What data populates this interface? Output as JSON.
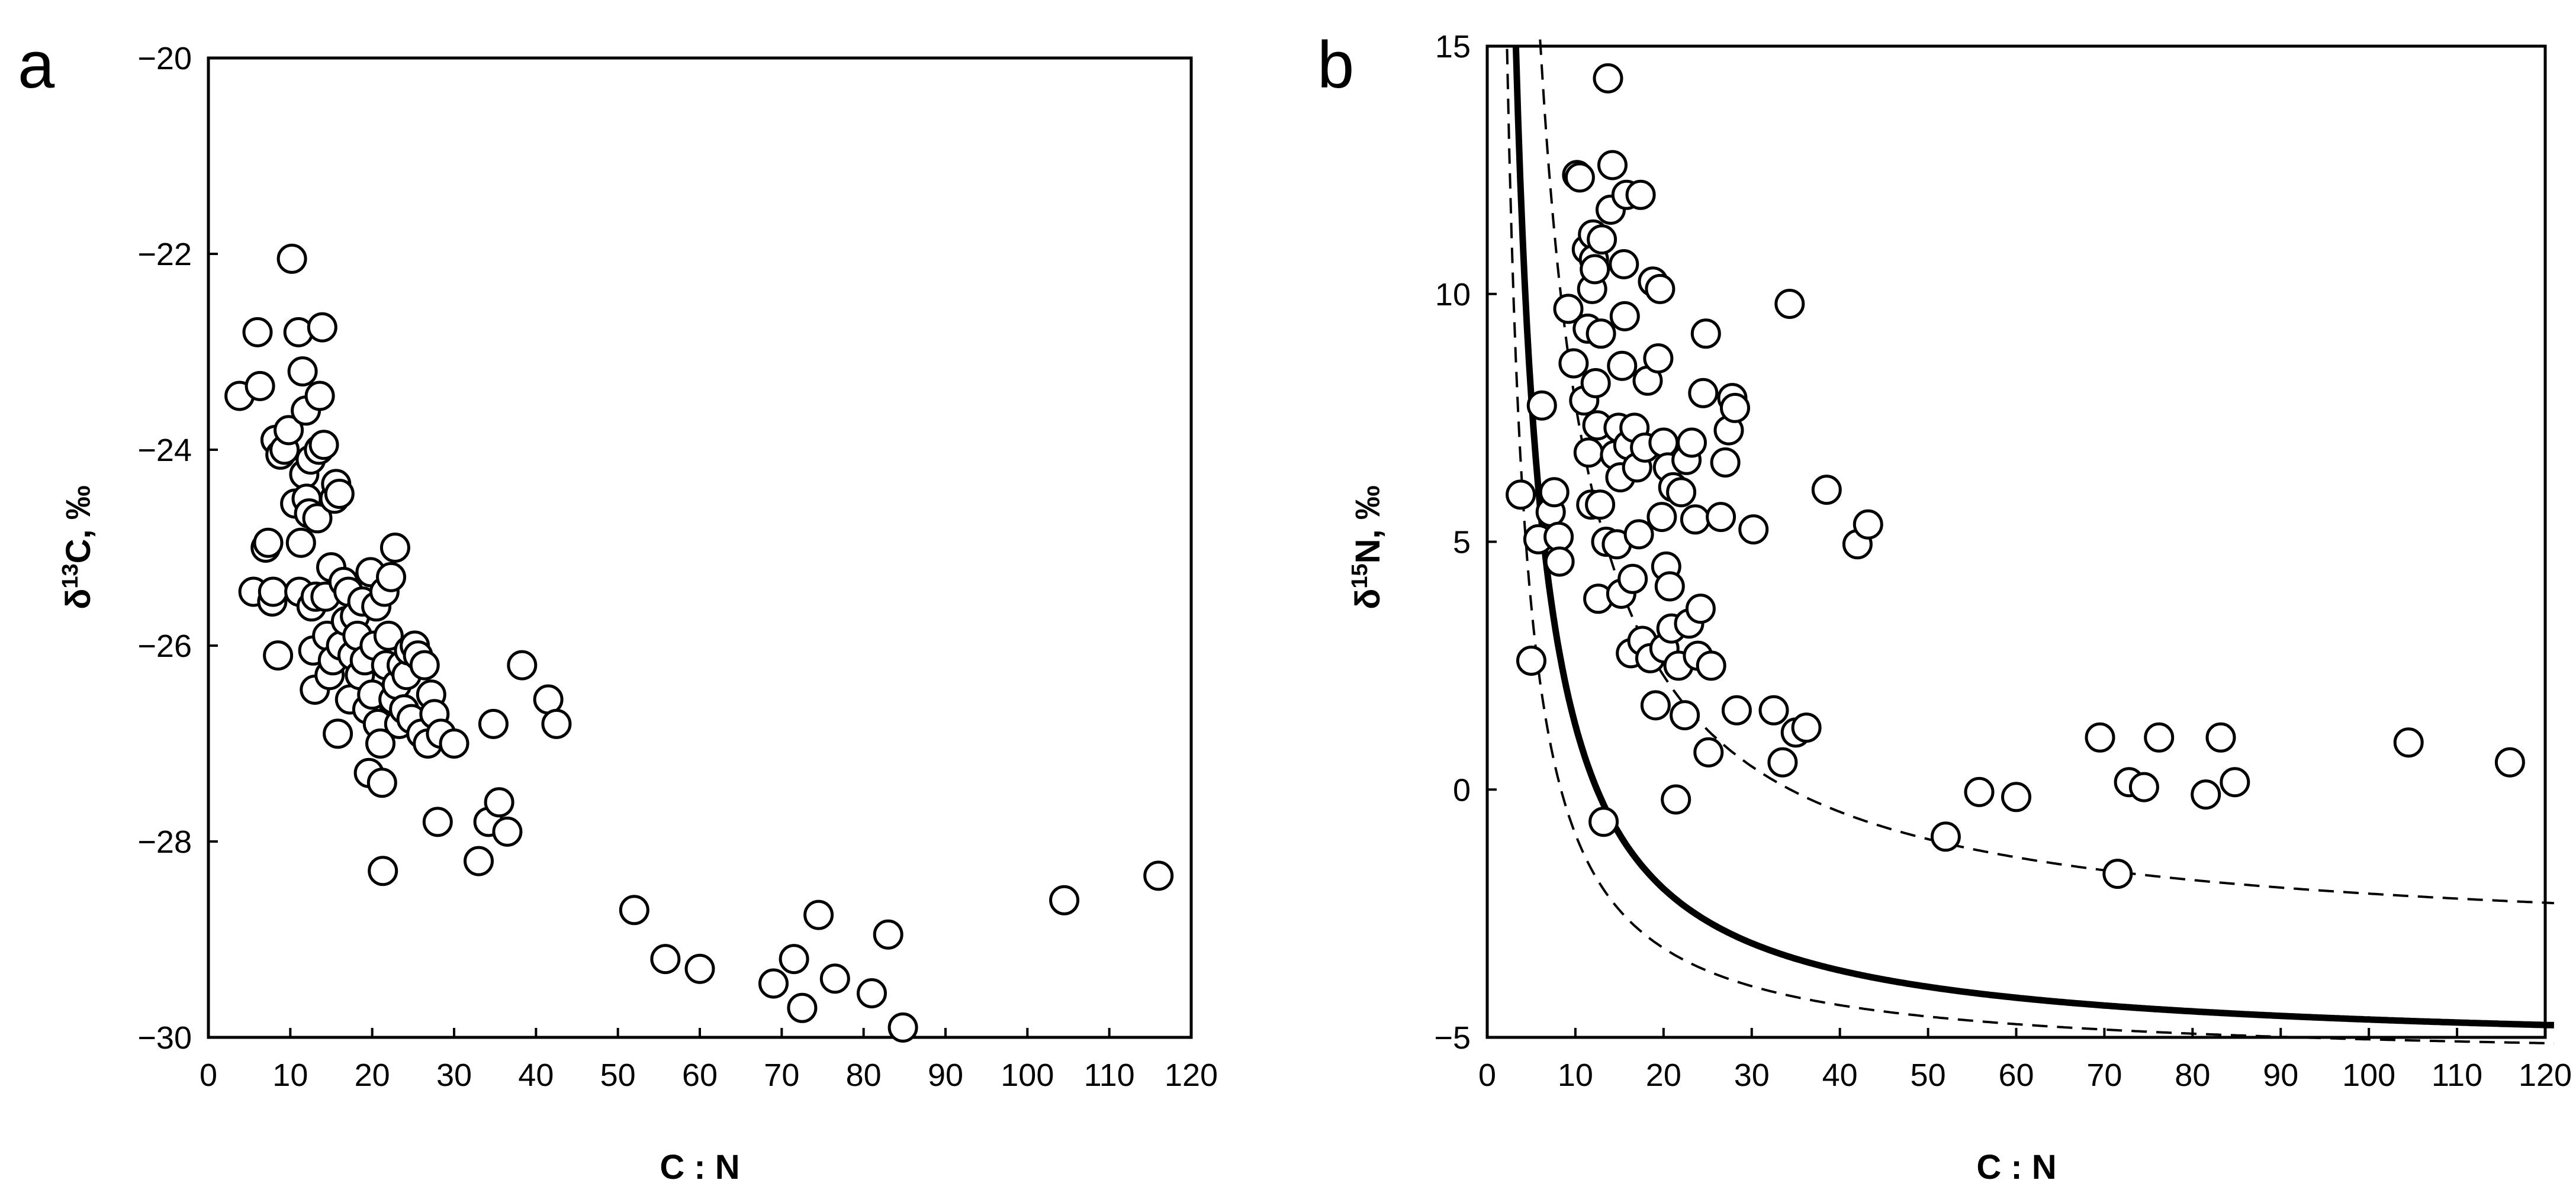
{
  "chart_data": [
    {
      "panel_label": "a",
      "type": "scatter",
      "xlabel": "C : N",
      "ylabel": "δ13C, ‰",
      "xlim": [
        0,
        120
      ],
      "ylim": [
        -30,
        -20
      ],
      "xticks": [
        0,
        10,
        20,
        30,
        40,
        50,
        60,
        70,
        80,
        90,
        100,
        110,
        120
      ],
      "yticks": [
        -30,
        -28,
        -26,
        -24,
        -22,
        -20
      ],
      "grid": false,
      "legend": "none",
      "points": [
        [
          3.8,
          -23.45
        ],
        [
          5.5,
          -25.45
        ],
        [
          6.0,
          -22.8
        ],
        [
          6.3,
          -23.35
        ],
        [
          7.0,
          -25.0
        ],
        [
          7.3,
          -24.95
        ],
        [
          7.8,
          -25.55
        ],
        [
          7.9,
          -25.45
        ],
        [
          8.2,
          -23.9
        ],
        [
          8.5,
          -26.1
        ],
        [
          8.8,
          -24.05
        ],
        [
          9.3,
          -24.0
        ],
        [
          9.8,
          -23.8
        ],
        [
          10.2,
          -22.05
        ],
        [
          10.6,
          -24.55
        ],
        [
          11.0,
          -22.8
        ],
        [
          11.1,
          -25.45
        ],
        [
          11.3,
          -24.95
        ],
        [
          11.5,
          -23.2
        ],
        [
          11.7,
          -24.25
        ],
        [
          11.9,
          -23.6
        ],
        [
          12.0,
          -24.5
        ],
        [
          12.3,
          -24.65
        ],
        [
          12.5,
          -24.1
        ],
        [
          12.6,
          -25.6
        ],
        [
          12.8,
          -26.05
        ],
        [
          13.0,
          -26.45
        ],
        [
          13.1,
          -25.5
        ],
        [
          13.3,
          -24.7
        ],
        [
          13.5,
          -24.0
        ],
        [
          13.6,
          -23.45
        ],
        [
          13.9,
          -22.75
        ],
        [
          14.1,
          -23.95
        ],
        [
          14.3,
          -25.5
        ],
        [
          14.5,
          -25.9
        ],
        [
          14.8,
          -26.3
        ],
        [
          15.0,
          -25.2
        ],
        [
          15.2,
          -26.15
        ],
        [
          15.4,
          -24.5
        ],
        [
          15.6,
          -24.35
        ],
        [
          15.8,
          -26.9
        ],
        [
          16.0,
          -24.45
        ],
        [
          16.2,
          -26.0
        ],
        [
          16.5,
          -25.35
        ],
        [
          16.8,
          -25.75
        ],
        [
          17.1,
          -25.45
        ],
        [
          17.3,
          -26.55
        ],
        [
          17.6,
          -26.1
        ],
        [
          17.9,
          -25.7
        ],
        [
          18.2,
          -25.9
        ],
        [
          18.5,
          -26.3
        ],
        [
          18.8,
          -25.55
        ],
        [
          19.1,
          -26.15
        ],
        [
          19.4,
          -26.65
        ],
        [
          19.6,
          -27.3
        ],
        [
          19.8,
          -25.25
        ],
        [
          20.0,
          -26.5
        ],
        [
          20.3,
          -26.0
        ],
        [
          20.5,
          -25.6
        ],
        [
          20.7,
          -26.8
        ],
        [
          21.0,
          -27.0
        ],
        [
          21.2,
          -27.4
        ],
        [
          21.3,
          -28.3
        ],
        [
          21.5,
          -25.45
        ],
        [
          21.7,
          -26.2
        ],
        [
          22.0,
          -25.9
        ],
        [
          22.3,
          -25.3
        ],
        [
          22.6,
          -26.55
        ],
        [
          22.8,
          -25.0
        ],
        [
          23.0,
          -26.4
        ],
        [
          23.3,
          -26.8
        ],
        [
          23.6,
          -26.2
        ],
        [
          23.9,
          -26.65
        ],
        [
          24.2,
          -26.3
        ],
        [
          24.5,
          -26.05
        ],
        [
          24.8,
          -26.75
        ],
        [
          25.2,
          -26.0
        ],
        [
          25.6,
          -26.1
        ],
        [
          26.0,
          -26.9
        ],
        [
          26.4,
          -26.2
        ],
        [
          26.8,
          -27.0
        ],
        [
          27.2,
          -26.5
        ],
        [
          27.6,
          -26.7
        ],
        [
          28.0,
          -27.8
        ],
        [
          28.4,
          -26.9
        ],
        [
          30.0,
          -27.0
        ],
        [
          33.0,
          -28.2
        ],
        [
          34.2,
          -27.8
        ],
        [
          34.8,
          -26.8
        ],
        [
          35.5,
          -27.6
        ],
        [
          36.5,
          -27.9
        ],
        [
          38.3,
          -26.2
        ],
        [
          41.5,
          -26.55
        ],
        [
          42.5,
          -26.8
        ],
        [
          52.0,
          -28.7
        ],
        [
          55.8,
          -29.2
        ],
        [
          60.0,
          -29.3
        ],
        [
          69.0,
          -29.45
        ],
        [
          71.5,
          -29.2
        ],
        [
          72.5,
          -29.7
        ],
        [
          74.5,
          -28.75
        ],
        [
          76.5,
          -29.4
        ],
        [
          81.0,
          -29.55
        ],
        [
          83.0,
          -28.95
        ],
        [
          84.8,
          -29.9
        ],
        [
          104.5,
          -28.6
        ],
        [
          116.0,
          -28.35
        ]
      ]
    },
    {
      "panel_label": "b",
      "type": "scatter",
      "xlabel": "C : N",
      "ylabel": "δ15N, ‰",
      "xlim": [
        0,
        120
      ],
      "ylim": [
        -5,
        15
      ],
      "xticks": [
        0,
        10,
        20,
        30,
        40,
        50,
        60,
        70,
        80,
        90,
        100,
        110,
        120
      ],
      "yticks": [
        -5,
        0,
        5,
        10,
        15
      ],
      "grid": false,
      "legend": "none",
      "points": [
        [
          3.8,
          5.95
        ],
        [
          5.0,
          2.6
        ],
        [
          5.8,
          5.05
        ],
        [
          6.2,
          7.75
        ],
        [
          7.2,
          5.6
        ],
        [
          7.6,
          6.0
        ],
        [
          8.1,
          5.1
        ],
        [
          8.2,
          4.6
        ],
        [
          9.2,
          9.7
        ],
        [
          9.8,
          8.6
        ],
        [
          10.2,
          12.4
        ],
        [
          10.5,
          12.35
        ],
        [
          11.0,
          7.85
        ],
        [
          11.3,
          10.9
        ],
        [
          11.4,
          9.3
        ],
        [
          11.5,
          6.8
        ],
        [
          11.8,
          5.75
        ],
        [
          11.9,
          10.1
        ],
        [
          12.0,
          11.2
        ],
        [
          12.1,
          10.7
        ],
        [
          12.2,
          10.5
        ],
        [
          12.3,
          8.2
        ],
        [
          12.5,
          7.35
        ],
        [
          12.6,
          3.85
        ],
        [
          12.8,
          5.75
        ],
        [
          12.9,
          9.2
        ],
        [
          13.0,
          11.1
        ],
        [
          13.2,
          -0.65
        ],
        [
          13.5,
          5.0
        ],
        [
          13.7,
          14.35
        ],
        [
          14.0,
          11.7
        ],
        [
          14.2,
          12.6
        ],
        [
          14.5,
          6.75
        ],
        [
          14.7,
          4.95
        ],
        [
          14.9,
          7.3
        ],
        [
          15.1,
          6.3
        ],
        [
          15.2,
          3.95
        ],
        [
          15.3,
          8.55
        ],
        [
          15.5,
          10.6
        ],
        [
          15.6,
          9.55
        ],
        [
          15.8,
          12.0
        ],
        [
          16.0,
          6.95
        ],
        [
          16.3,
          2.75
        ],
        [
          16.5,
          4.25
        ],
        [
          16.7,
          7.3
        ],
        [
          17.0,
          6.5
        ],
        [
          17.2,
          5.15
        ],
        [
          17.4,
          12.0
        ],
        [
          17.6,
          3.0
        ],
        [
          17.9,
          6.9
        ],
        [
          18.2,
          8.25
        ],
        [
          18.5,
          2.65
        ],
        [
          18.8,
          10.25
        ],
        [
          19.1,
          1.7
        ],
        [
          19.4,
          8.7
        ],
        [
          19.6,
          10.1
        ],
        [
          19.8,
          5.5
        ],
        [
          20.0,
          7.0
        ],
        [
          20.1,
          2.85
        ],
        [
          20.3,
          4.5
        ],
        [
          20.5,
          6.5
        ],
        [
          20.7,
          4.1
        ],
        [
          20.9,
          3.25
        ],
        [
          21.1,
          6.1
        ],
        [
          21.4,
          -0.2
        ],
        [
          21.7,
          2.5
        ],
        [
          22.0,
          6.0
        ],
        [
          22.4,
          1.5
        ],
        [
          22.6,
          6.65
        ],
        [
          22.9,
          3.35
        ],
        [
          23.2,
          7.0
        ],
        [
          23.6,
          5.45
        ],
        [
          23.9,
          2.7
        ],
        [
          24.2,
          3.65
        ],
        [
          24.5,
          8.0
        ],
        [
          24.8,
          9.2
        ],
        [
          25.1,
          0.75
        ],
        [
          25.4,
          2.5
        ],
        [
          26.5,
          5.5
        ],
        [
          27.0,
          6.6
        ],
        [
          27.4,
          7.25
        ],
        [
          27.8,
          7.9
        ],
        [
          28.1,
          7.7
        ],
        [
          28.3,
          1.6
        ],
        [
          30.2,
          5.25
        ],
        [
          32.5,
          1.6
        ],
        [
          33.5,
          0.55
        ],
        [
          34.3,
          9.8
        ],
        [
          35.0,
          1.15
        ],
        [
          36.2,
          1.25
        ],
        [
          38.5,
          6.05
        ],
        [
          42.0,
          4.95
        ],
        [
          43.2,
          5.35
        ],
        [
          52.0,
          -0.95
        ],
        [
          55.8,
          -0.05
        ],
        [
          60.0,
          -0.15
        ],
        [
          69.5,
          1.05
        ],
        [
          71.5,
          -1.7
        ],
        [
          72.8,
          0.15
        ],
        [
          74.5,
          0.05
        ],
        [
          76.2,
          1.05
        ],
        [
          81.5,
          -0.1
        ],
        [
          83.2,
          1.05
        ],
        [
          84.8,
          0.15
        ],
        [
          104.5,
          0.95
        ],
        [
          116.0,
          0.55
        ]
      ],
      "curves": [
        {
          "style": "solid",
          "equation": "y = 66/x - 5.3"
        },
        {
          "style": "dashed",
          "equation": "y = 46/x - 5.5"
        },
        {
          "style": "dashed",
          "equation": "y = 110/x - 3.2"
        }
      ]
    }
  ]
}
